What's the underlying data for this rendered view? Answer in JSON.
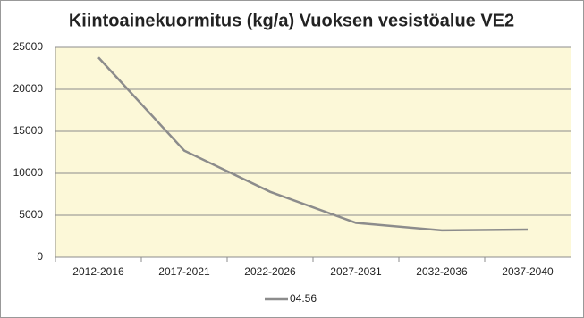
{
  "chart_data": {
    "type": "line",
    "title": "Kiintoainekuormitus (kg/a) Vuoksen vesistöalue VE2",
    "categories": [
      "2012-2016",
      "2017-2021",
      "2022-2026",
      "2027-2031",
      "2032-2036",
      "2037-2040"
    ],
    "series": [
      {
        "name": "04.56",
        "color": "#8c8c8c",
        "values": [
          23800,
          12700,
          7800,
          4100,
          3200,
          3300
        ]
      }
    ],
    "ylim": [
      0,
      25000
    ],
    "yticks": [
      0,
      5000,
      10000,
      15000,
      20000,
      25000
    ],
    "grid": true,
    "plot_background": "#fcf8d8",
    "legend": "bottom"
  }
}
